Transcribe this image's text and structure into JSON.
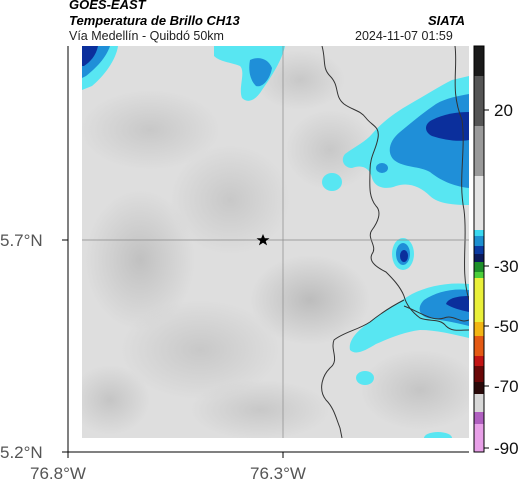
{
  "header": {
    "product": "GOES-EAST",
    "title": "Temperatura de Brillo CH13",
    "agency": "SIATA",
    "route": "Vía Medellín - Quibdó 50km",
    "datetime": "2024-11-07 01:59"
  },
  "axes": {
    "lat_ticks": [
      "5.7°N",
      "5.2°N"
    ],
    "lon_ticks": [
      "76.8°W",
      "76.3°W"
    ]
  },
  "colorbar": {
    "ticks": [
      "20",
      "-30",
      "-50",
      "-70",
      "-90"
    ]
  },
  "colors": {
    "cloud_light": "#58e6f2",
    "cloud_mid": "#1f8fd8",
    "cloud_dark": "#0b2f9c",
    "marker": "#000000"
  }
}
